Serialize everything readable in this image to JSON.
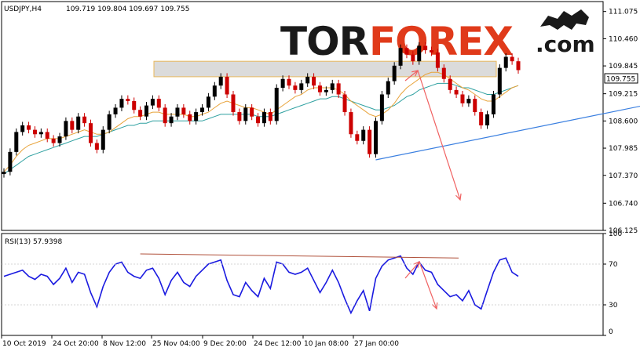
{
  "header": {
    "symbol_timeframe": "USDJPY,H4",
    "ohlc": "109.719 109.804 109.697 109.755",
    "watermark_tor": "TOR",
    "watermark_forex": "FOREX",
    "watermark_com": ".com"
  },
  "rsi_header": "RSI(13) 57.9398",
  "current_price_tag": "109.755",
  "colors": {
    "bull_candle": "#000000",
    "bear_candle": "#cc0000",
    "ma_fast": "#e8a33a",
    "ma_slow": "#2ea0a0",
    "trendline": "#3a7fe0",
    "resistance_zone": "#d8d8d8",
    "resistance_border": "#e6b04a",
    "forecast_arrow": "#f06060",
    "rsi_line": "#1a1ae0",
    "rsi_trendline": "#b0503a",
    "axis": "#000000",
    "logo_dark": "#1a1a1a",
    "logo_red": "#e03a1a"
  },
  "chart_data": [
    {
      "type": "line",
      "panel": "price",
      "y_ticks": [
        "111.075",
        "110.460",
        "109.845",
        "109.215",
        "108.600",
        "107.985",
        "107.370",
        "106.740",
        "106.125"
      ],
      "ylim": [
        106.125,
        111.3
      ],
      "x_labels": [
        "10 Oct 2019",
        "24 Oct 20:00",
        "8 Nov 12:00",
        "25 Nov 04:00",
        "9 Dec 20:00",
        "24 Dec 12:00",
        "10 Jan 08:00",
        "27 Jan 00:00"
      ],
      "series": [
        {
          "values": [
            107.45,
            107.9,
            108.35,
            108.5,
            108.4,
            108.3,
            108.35,
            108.2,
            108.1,
            108.25,
            108.6,
            108.4,
            108.7,
            108.55,
            108.1,
            107.95,
            108.4,
            108.75,
            108.9,
            109.1,
            109.05,
            108.85,
            108.7,
            108.95,
            109.1,
            108.9,
            108.55,
            108.7,
            108.9,
            108.75,
            108.6,
            108.8,
            108.9,
            109.15,
            109.4,
            109.6,
            109.2,
            108.8,
            108.6,
            108.9,
            108.7,
            108.55,
            108.8,
            108.6,
            109.35,
            109.55,
            109.4,
            109.3,
            109.45,
            109.6,
            109.4,
            109.25,
            109.3,
            109.45,
            109.2,
            108.8,
            108.3,
            108.15,
            108.4,
            107.85,
            108.6,
            109.2,
            109.5,
            109.85,
            110.25,
            110.1,
            109.95,
            110.3,
            110.2,
            110.15,
            109.8,
            109.55,
            109.3,
            109.2,
            109.0,
            109.1,
            108.8,
            108.5,
            108.75,
            109.2,
            109.8,
            110.05,
            109.95,
            109.75
          ]
        }
      ],
      "moving_average_fast": [
        107.45,
        107.6,
        107.8,
        107.95,
        108.05,
        108.1,
        108.15,
        108.2,
        108.2,
        108.2,
        108.25,
        108.3,
        108.35,
        108.4,
        108.35,
        108.3,
        108.3,
        108.35,
        108.45,
        108.55,
        108.65,
        108.7,
        108.7,
        108.75,
        108.8,
        108.8,
        108.75,
        108.75,
        108.75,
        108.75,
        108.7,
        108.7,
        108.75,
        108.8,
        108.9,
        109.0,
        109.05,
        109.0,
        108.95,
        108.9,
        108.9,
        108.85,
        108.8,
        108.75,
        108.85,
        108.95,
        109.05,
        109.15,
        109.2,
        109.3,
        109.35,
        109.35,
        109.35,
        109.35,
        109.3,
        109.2,
        109.05,
        108.95,
        108.85,
        108.75,
        108.7,
        108.75,
        108.85,
        109.0,
        109.2,
        109.35,
        109.45,
        109.55,
        109.65,
        109.7,
        109.7,
        109.65,
        109.55,
        109.45,
        109.35,
        109.3,
        109.2,
        109.1,
        109.05,
        109.05,
        109.15,
        109.25,
        109.35,
        109.4
      ],
      "moving_average_slow": [
        107.4,
        107.5,
        107.6,
        107.7,
        107.8,
        107.85,
        107.9,
        107.95,
        108.0,
        108.05,
        108.1,
        108.15,
        108.2,
        108.25,
        108.25,
        108.25,
        108.3,
        108.35,
        108.4,
        108.45,
        108.5,
        108.5,
        108.55,
        108.55,
        108.6,
        108.6,
        108.6,
        108.6,
        108.6,
        108.6,
        108.6,
        108.6,
        108.6,
        108.65,
        108.7,
        108.75,
        108.75,
        108.75,
        108.75,
        108.75,
        108.75,
        108.7,
        108.7,
        108.7,
        108.75,
        108.8,
        108.85,
        108.9,
        108.95,
        109.0,
        109.05,
        109.1,
        109.1,
        109.15,
        109.15,
        109.1,
        109.05,
        109.0,
        108.95,
        108.9,
        108.85,
        108.85,
        108.9,
        108.95,
        109.05,
        109.15,
        109.2,
        109.3,
        109.35,
        109.4,
        109.45,
        109.45,
        109.45,
        109.4,
        109.35,
        109.35,
        109.3,
        109.25,
        109.2,
        109.2,
        109.25,
        109.3,
        109.35,
        109.4
      ],
      "resistance_zone": [
        109.6,
        109.95
      ],
      "support_trendline": [
        [
          60,
          107.72
        ],
        [
          105,
          109.0
        ]
      ]
    },
    {
      "type": "line",
      "panel": "rsi",
      "y_ticks": [
        "100",
        "70",
        "30",
        "0"
      ],
      "ylim": [
        0,
        100
      ],
      "series": [
        {
          "values": [
            58,
            60,
            62,
            64,
            58,
            55,
            60,
            58,
            50,
            56,
            66,
            52,
            62,
            60,
            42,
            28,
            48,
            62,
            70,
            72,
            62,
            58,
            56,
            64,
            66,
            56,
            40,
            54,
            62,
            52,
            48,
            58,
            64,
            70,
            72,
            74,
            54,
            40,
            38,
            52,
            44,
            38,
            56,
            46,
            72,
            70,
            62,
            60,
            62,
            66,
            54,
            42,
            52,
            64,
            52,
            36,
            22,
            34,
            44,
            24,
            56,
            68,
            74,
            76,
            78,
            66,
            60,
            72,
            64,
            62,
            50,
            44,
            38,
            40,
            34,
            44,
            30,
            26,
            44,
            62,
            74,
            76,
            62,
            58
          ]
        }
      ],
      "rsi_trendline": [
        [
          22,
          80
        ],
        [
          100,
          76
        ]
      ]
    }
  ]
}
